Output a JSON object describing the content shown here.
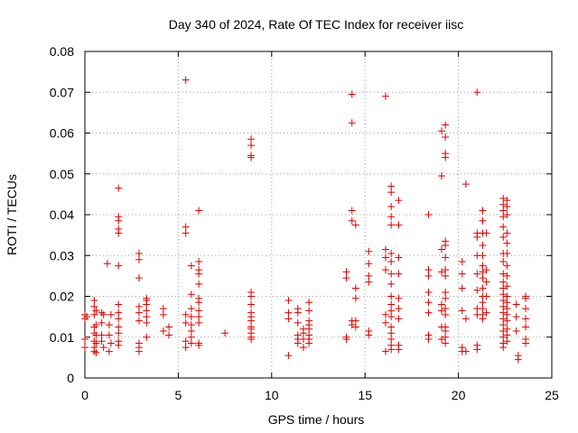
{
  "chart_data": {
    "type": "scatter",
    "title": "Day 340 of 2024, Rate Of TEC Index for receiver iisc",
    "xlabel": "GPS time / hours",
    "ylabel": "ROTI / TECUs",
    "xlim": [
      0,
      25
    ],
    "ylim": [
      0,
      0.08
    ],
    "x_ticks": [
      0,
      5,
      10,
      15,
      20,
      25
    ],
    "x_tick_labels": [
      "0",
      "5",
      "10",
      "15",
      "20",
      "25"
    ],
    "y_ticks": [
      0,
      0.01,
      0.02,
      0.03,
      0.04,
      0.05,
      0.06,
      0.07,
      0.08
    ],
    "y_tick_labels": [
      "0",
      "0.01",
      "0.02",
      "0.03",
      "0.04",
      "0.05",
      "0.06",
      "0.07",
      "0.08"
    ],
    "grid": true,
    "marker": "+",
    "series": [
      {
        "name": "ROTI",
        "color": "#e00000",
        "points": [
          [
            0.0,
            0.0155
          ],
          [
            0.0,
            0.0145
          ],
          [
            0.0,
            0.0095
          ],
          [
            0.0,
            0.0075
          ],
          [
            0.1,
            0.015
          ],
          [
            0.5,
            0.019
          ],
          [
            0.5,
            0.0175
          ],
          [
            0.5,
            0.0155
          ],
          [
            0.5,
            0.0125
          ],
          [
            0.5,
            0.011
          ],
          [
            0.5,
            0.009
          ],
          [
            0.5,
            0.0075
          ],
          [
            0.5,
            0.0065
          ],
          [
            0.6,
            0.0165
          ],
          [
            0.6,
            0.013
          ],
          [
            0.6,
            0.0105
          ],
          [
            0.6,
            0.0085
          ],
          [
            0.6,
            0.0062
          ],
          [
            0.9,
            0.016
          ],
          [
            0.9,
            0.0135
          ],
          [
            0.9,
            0.0105
          ],
          [
            0.9,
            0.009
          ],
          [
            1.0,
            0.0155
          ],
          [
            1.0,
            0.0075
          ],
          [
            1.2,
            0.028
          ],
          [
            1.3,
            0.013
          ],
          [
            1.3,
            0.0105
          ],
          [
            1.3,
            0.0065
          ],
          [
            1.4,
            0.0155
          ],
          [
            1.4,
            0.0085
          ],
          [
            1.8,
            0.0465
          ],
          [
            1.8,
            0.0395
          ],
          [
            1.8,
            0.0385
          ],
          [
            1.8,
            0.0365
          ],
          [
            1.8,
            0.0355
          ],
          [
            1.8,
            0.0275
          ],
          [
            1.8,
            0.018
          ],
          [
            1.8,
            0.016
          ],
          [
            1.8,
            0.0145
          ],
          [
            1.8,
            0.0125
          ],
          [
            1.8,
            0.011
          ],
          [
            1.8,
            0.009
          ],
          [
            1.8,
            0.008
          ],
          [
            2.9,
            0.0305
          ],
          [
            2.9,
            0.029
          ],
          [
            2.9,
            0.0245
          ],
          [
            2.9,
            0.0175
          ],
          [
            2.9,
            0.016
          ],
          [
            2.9,
            0.014
          ],
          [
            2.9,
            0.0085
          ],
          [
            2.9,
            0.0075
          ],
          [
            2.9,
            0.0065
          ],
          [
            3.3,
            0.0195
          ],
          [
            3.3,
            0.019
          ],
          [
            3.3,
            0.018
          ],
          [
            3.3,
            0.0165
          ],
          [
            3.3,
            0.015
          ],
          [
            3.3,
            0.0135
          ],
          [
            3.3,
            0.01
          ],
          [
            4.2,
            0.017
          ],
          [
            4.2,
            0.0155
          ],
          [
            4.2,
            0.0115
          ],
          [
            4.5,
            0.0125
          ],
          [
            4.5,
            0.0105
          ],
          [
            5.4,
            0.073
          ],
          [
            5.4,
            0.037
          ],
          [
            5.4,
            0.0355
          ],
          [
            5.4,
            0.0155
          ],
          [
            5.4,
            0.0135
          ],
          [
            5.4,
            0.009
          ],
          [
            5.4,
            0.0075
          ],
          [
            5.7,
            0.0275
          ],
          [
            5.7,
            0.0205
          ],
          [
            5.7,
            0.017
          ],
          [
            5.7,
            0.015
          ],
          [
            5.7,
            0.013
          ],
          [
            5.7,
            0.0115
          ],
          [
            5.7,
            0.01
          ],
          [
            5.7,
            0.0085
          ],
          [
            6.1,
            0.041
          ],
          [
            6.1,
            0.0285
          ],
          [
            6.1,
            0.0265
          ],
          [
            6.1,
            0.0255
          ],
          [
            6.1,
            0.023
          ],
          [
            6.1,
            0.0195
          ],
          [
            6.1,
            0.0185
          ],
          [
            6.1,
            0.0165
          ],
          [
            6.1,
            0.015
          ],
          [
            6.1,
            0.0135
          ],
          [
            6.1,
            0.0085
          ],
          [
            6.1,
            0.008
          ],
          [
            7.5,
            0.011
          ],
          [
            8.9,
            0.0585
          ],
          [
            8.9,
            0.057
          ],
          [
            8.9,
            0.0545
          ],
          [
            8.9,
            0.054
          ],
          [
            8.9,
            0.021
          ],
          [
            8.9,
            0.02
          ],
          [
            8.9,
            0.018
          ],
          [
            8.9,
            0.016
          ],
          [
            8.9,
            0.015
          ],
          [
            8.9,
            0.014
          ],
          [
            8.9,
            0.0125
          ],
          [
            8.9,
            0.012
          ],
          [
            8.9,
            0.011
          ],
          [
            8.9,
            0.01
          ],
          [
            8.9,
            0.0095
          ],
          [
            10.9,
            0.019
          ],
          [
            10.9,
            0.016
          ],
          [
            10.9,
            0.0145
          ],
          [
            10.9,
            0.0055
          ],
          [
            11.4,
            0.017
          ],
          [
            11.4,
            0.016
          ],
          [
            11.4,
            0.0135
          ],
          [
            11.4,
            0.0105
          ],
          [
            11.4,
            0.0095
          ],
          [
            11.4,
            0.0085
          ],
          [
            11.7,
            0.012
          ],
          [
            11.7,
            0.011
          ],
          [
            11.7,
            0.0095
          ],
          [
            11.7,
            0.0075
          ],
          [
            12.0,
            0.0185
          ],
          [
            12.0,
            0.0165
          ],
          [
            12.0,
            0.014
          ],
          [
            12.0,
            0.013
          ],
          [
            12.0,
            0.012
          ],
          [
            12.0,
            0.0105
          ],
          [
            12.0,
            0.0095
          ],
          [
            12.0,
            0.0085
          ],
          [
            14.0,
            0.026
          ],
          [
            14.0,
            0.0245
          ],
          [
            14.0,
            0.01
          ],
          [
            14.0,
            0.0095
          ],
          [
            14.3,
            0.0695
          ],
          [
            14.3,
            0.0625
          ],
          [
            14.3,
            0.041
          ],
          [
            14.3,
            0.0385
          ],
          [
            14.3,
            0.014
          ],
          [
            14.3,
            0.013
          ],
          [
            14.5,
            0.0375
          ],
          [
            14.5,
            0.022
          ],
          [
            14.5,
            0.0195
          ],
          [
            14.5,
            0.014
          ],
          [
            14.5,
            0.0125
          ],
          [
            15.2,
            0.031
          ],
          [
            15.2,
            0.028
          ],
          [
            15.2,
            0.025
          ],
          [
            15.2,
            0.0235
          ],
          [
            15.2,
            0.0115
          ],
          [
            15.2,
            0.0105
          ],
          [
            16.1,
            0.069
          ],
          [
            16.1,
            0.0315
          ],
          [
            16.1,
            0.0295
          ],
          [
            16.1,
            0.0265
          ],
          [
            16.1,
            0.0155
          ],
          [
            16.1,
            0.0135
          ],
          [
            16.1,
            0.0065
          ],
          [
            16.4,
            0.047
          ],
          [
            16.4,
            0.0455
          ],
          [
            16.4,
            0.042
          ],
          [
            16.4,
            0.0395
          ],
          [
            16.4,
            0.0375
          ],
          [
            16.4,
            0.0305
          ],
          [
            16.4,
            0.0285
          ],
          [
            16.4,
            0.0255
          ],
          [
            16.4,
            0.023
          ],
          [
            16.4,
            0.02
          ],
          [
            16.4,
            0.018
          ],
          [
            16.4,
            0.0165
          ],
          [
            16.4,
            0.015
          ],
          [
            16.4,
            0.0125
          ],
          [
            16.4,
            0.011
          ],
          [
            16.4,
            0.0095
          ],
          [
            16.4,
            0.008
          ],
          [
            16.4,
            0.007
          ],
          [
            16.8,
            0.0435
          ],
          [
            16.8,
            0.0375
          ],
          [
            16.8,
            0.0295
          ],
          [
            16.8,
            0.0255
          ],
          [
            16.8,
            0.0195
          ],
          [
            16.8,
            0.017
          ],
          [
            16.8,
            0.0145
          ],
          [
            16.8,
            0.008
          ],
          [
            16.8,
            0.007
          ],
          [
            18.4,
            0.04
          ],
          [
            18.4,
            0.0265
          ],
          [
            18.4,
            0.025
          ],
          [
            18.4,
            0.021
          ],
          [
            18.4,
            0.0185
          ],
          [
            18.4,
            0.016
          ],
          [
            18.4,
            0.0105
          ],
          [
            18.4,
            0.0095
          ],
          [
            19.1,
            0.0605
          ],
          [
            19.1,
            0.0495
          ],
          [
            19.1,
            0.0315
          ],
          [
            19.1,
            0.026
          ],
          [
            19.1,
            0.018
          ],
          [
            19.1,
            0.0165
          ],
          [
            19.1,
            0.0125
          ],
          [
            19.1,
            0.0095
          ],
          [
            19.3,
            0.062
          ],
          [
            19.3,
            0.059
          ],
          [
            19.3,
            0.055
          ],
          [
            19.3,
            0.054
          ],
          [
            19.3,
            0.0335
          ],
          [
            19.3,
            0.0325
          ],
          [
            19.3,
            0.0295
          ],
          [
            19.3,
            0.0265
          ],
          [
            19.3,
            0.025
          ],
          [
            19.3,
            0.021
          ],
          [
            19.3,
            0.0195
          ],
          [
            19.3,
            0.017
          ],
          [
            19.3,
            0.0155
          ],
          [
            19.3,
            0.0125
          ],
          [
            19.3,
            0.0115
          ],
          [
            19.3,
            0.01
          ],
          [
            19.3,
            0.0085
          ],
          [
            20.2,
            0.0285
          ],
          [
            20.2,
            0.0255
          ],
          [
            20.2,
            0.022
          ],
          [
            20.2,
            0.0165
          ],
          [
            20.2,
            0.0075
          ],
          [
            20.2,
            0.0065
          ],
          [
            20.4,
            0.0475
          ],
          [
            20.4,
            0.0145
          ],
          [
            20.4,
            0.0065
          ],
          [
            21.0,
            0.07
          ],
          [
            21.0,
            0.0355
          ],
          [
            21.0,
            0.0345
          ],
          [
            21.0,
            0.03
          ],
          [
            21.0,
            0.0255
          ],
          [
            21.0,
            0.0215
          ],
          [
            21.0,
            0.017
          ],
          [
            21.0,
            0.0155
          ],
          [
            21.0,
            0.008
          ],
          [
            21.0,
            0.007
          ],
          [
            21.3,
            0.041
          ],
          [
            21.3,
            0.0385
          ],
          [
            21.3,
            0.0355
          ],
          [
            21.3,
            0.0325
          ],
          [
            21.3,
            0.03
          ],
          [
            21.3,
            0.0275
          ],
          [
            21.3,
            0.026
          ],
          [
            21.3,
            0.0245
          ],
          [
            21.3,
            0.022
          ],
          [
            21.3,
            0.02
          ],
          [
            21.3,
            0.0185
          ],
          [
            21.3,
            0.017
          ],
          [
            21.3,
            0.0155
          ],
          [
            21.3,
            0.0145
          ],
          [
            21.5,
            0.0355
          ],
          [
            21.5,
            0.0265
          ],
          [
            21.5,
            0.0235
          ],
          [
            21.5,
            0.02
          ],
          [
            21.5,
            0.016
          ],
          [
            22.4,
            0.044
          ],
          [
            22.4,
            0.0425
          ],
          [
            22.4,
            0.041
          ],
          [
            22.4,
            0.0395
          ],
          [
            22.4,
            0.037
          ],
          [
            22.4,
            0.0345
          ],
          [
            22.4,
            0.0305
          ],
          [
            22.4,
            0.0285
          ],
          [
            22.4,
            0.0255
          ],
          [
            22.4,
            0.0235
          ],
          [
            22.4,
            0.022
          ],
          [
            22.4,
            0.0205
          ],
          [
            22.4,
            0.019
          ],
          [
            22.4,
            0.0175
          ],
          [
            22.4,
            0.016
          ],
          [
            22.4,
            0.0145
          ],
          [
            22.4,
            0.013
          ],
          [
            22.4,
            0.0115
          ],
          [
            22.4,
            0.01
          ],
          [
            22.4,
            0.0085
          ],
          [
            22.4,
            0.0075
          ],
          [
            22.6,
            0.0435
          ],
          [
            22.6,
            0.042
          ],
          [
            22.6,
            0.04
          ],
          [
            22.6,
            0.0355
          ],
          [
            22.6,
            0.033
          ],
          [
            22.6,
            0.0305
          ],
          [
            22.6,
            0.0275
          ],
          [
            22.6,
            0.025
          ],
          [
            22.6,
            0.0225
          ],
          [
            22.6,
            0.02
          ],
          [
            22.6,
            0.0185
          ],
          [
            22.6,
            0.017
          ],
          [
            22.6,
            0.0155
          ],
          [
            22.6,
            0.014
          ],
          [
            22.6,
            0.012
          ],
          [
            22.6,
            0.0105
          ],
          [
            22.6,
            0.009
          ],
          [
            23.1,
            0.018
          ],
          [
            23.1,
            0.015
          ],
          [
            23.1,
            0.0115
          ],
          [
            23.2,
            0.0045
          ],
          [
            23.2,
            0.0055
          ],
          [
            23.6,
            0.02
          ],
          [
            23.6,
            0.0195
          ],
          [
            23.6,
            0.017
          ],
          [
            23.6,
            0.0145
          ],
          [
            23.6,
            0.0125
          ],
          [
            23.6,
            0.0095
          ],
          [
            23.6,
            0.0085
          ]
        ]
      }
    ]
  }
}
